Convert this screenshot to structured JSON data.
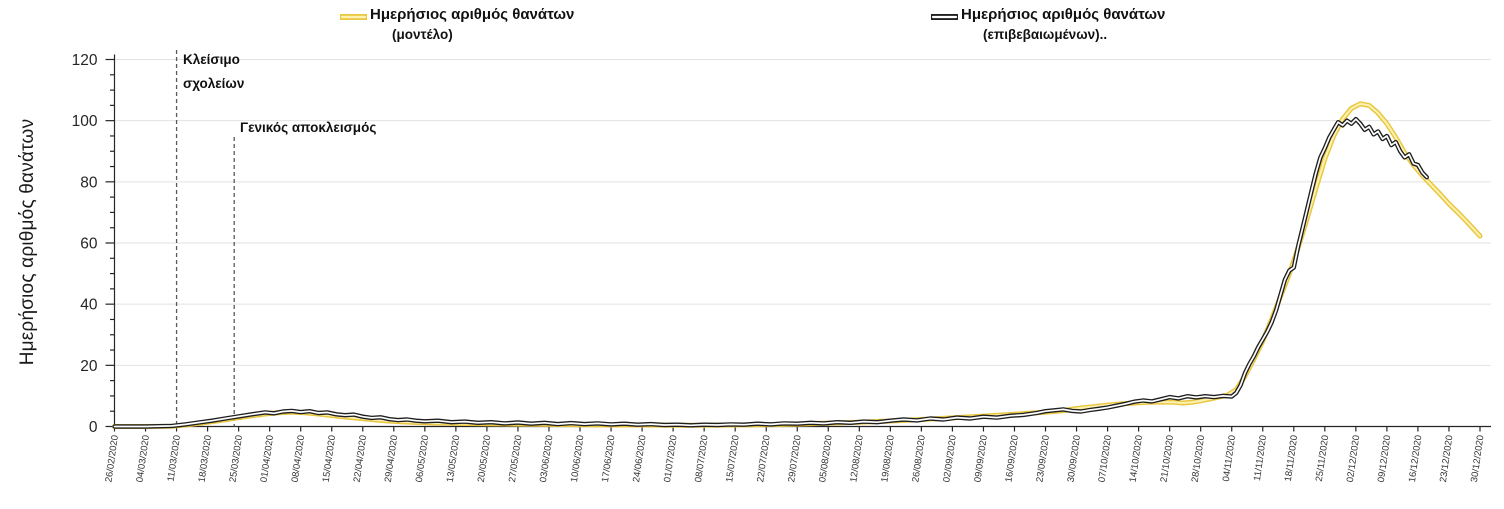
{
  "y_axis_title": "Ημερήσιος αριθμός θανάτων",
  "legend": [
    {
      "label": "Ημερήσιος αριθμός θανάτων",
      "sub": "(μοντέλο)"
    },
    {
      "label": "Ημερήσιος αριθμός θανάτων",
      "sub": "(επιβεβαιωμένων).."
    }
  ],
  "annotations": [
    {
      "line1": "Κλείσιμο",
      "line2": "σχολείων",
      "date": "11/03/2020",
      "day": 14
    },
    {
      "line1": "Γενικός αποκλεισμός",
      "line2": "",
      "date": "24/03/2020",
      "day": 27
    }
  ],
  "colors": {
    "model_outer": "#E9C63E",
    "model_inner": "#FCF1B0",
    "confirmed_outer": "#1F1F1F",
    "confirmed_inner": "#FFFFFF",
    "gridline": "#E2E2E2",
    "axis": "#262626",
    "tick_label": "#333333",
    "dashed_line": "#595959"
  },
  "chart_data": {
    "type": "line",
    "title": "",
    "xlabel": "",
    "ylabel": "Ημερήσιος αριθμός θανάτων",
    "ylim": [
      0,
      120
    ],
    "y_ticks": [
      0,
      20,
      40,
      60,
      80,
      100,
      120
    ],
    "y_minor_step": 5,
    "grid": "horizontal",
    "legend_position": "top",
    "x_start_date": "26/02/2020",
    "x_end_date": "30/12/2020",
    "x_tick_labels": [
      "26/02/2020",
      "04/03/2020",
      "11/03/2020",
      "18/03/2020",
      "25/03/2020",
      "01/04/2020",
      "08/04/2020",
      "15/04/2020",
      "22/04/2020",
      "29/04/2020",
      "06/05/2020",
      "13/05/2020",
      "20/05/2020",
      "27/05/2020",
      "03/06/2020",
      "10/06/2020",
      "17/06/2020",
      "24/06/2020",
      "01/07/2020",
      "08/07/2020",
      "15/07/2020",
      "22/07/2020",
      "29/07/2020",
      "05/08/2020",
      "12/08/2020",
      "19/08/2020",
      "26/08/2020",
      "02/09/2020",
      "09/09/2020",
      "16/09/2020",
      "23/09/2020",
      "30/09/2020",
      "07/10/2020",
      "14/10/2020",
      "21/10/2020",
      "28/10/2020",
      "04/11/2020",
      "11/11/2020",
      "18/11/2020",
      "25/11/2020",
      "02/12/2020",
      "09/12/2020",
      "16/12/2020",
      "23/12/2020",
      "30/12/2020"
    ],
    "x_unit": "days since 26/02/2020",
    "series": [
      {
        "name": "Ημερήσιος αριθμός θανάτων (μοντέλο)",
        "color": "#E9C63E",
        "points": [
          [
            0,
            0
          ],
          [
            7,
            0
          ],
          [
            13,
            0.1
          ],
          [
            16,
            0.5
          ],
          [
            19,
            1.0
          ],
          [
            22,
            1.6
          ],
          [
            25,
            2.2
          ],
          [
            28,
            2.9
          ],
          [
            31,
            3.5
          ],
          [
            34,
            4.1
          ],
          [
            37,
            4.5
          ],
          [
            40,
            4.7
          ],
          [
            43,
            4.5
          ],
          [
            46,
            4.1
          ],
          [
            49,
            3.6
          ],
          [
            52,
            3.1
          ],
          [
            55,
            2.7
          ],
          [
            58,
            2.3
          ],
          [
            61,
            1.9
          ],
          [
            64,
            1.6
          ],
          [
            67,
            1.4
          ],
          [
            70,
            1.2
          ],
          [
            77,
            1.0
          ],
          [
            84,
            0.9
          ],
          [
            91,
            0.8
          ],
          [
            98,
            0.7
          ],
          [
            105,
            0.6
          ],
          [
            112,
            0.5
          ],
          [
            119,
            0.5
          ],
          [
            126,
            0.4
          ],
          [
            133,
            0.4
          ],
          [
            140,
            0.5
          ],
          [
            147,
            0.6
          ],
          [
            154,
            0.8
          ],
          [
            161,
            1.1
          ],
          [
            168,
            1.4
          ],
          [
            175,
            1.8
          ],
          [
            182,
            2.3
          ],
          [
            189,
            2.8
          ],
          [
            196,
            3.4
          ],
          [
            203,
            4.0
          ],
          [
            210,
            4.7
          ],
          [
            214,
            5.2
          ],
          [
            217,
            5.9
          ],
          [
            221,
            6.5
          ],
          [
            224,
            7.0
          ],
          [
            227,
            7.4
          ],
          [
            230,
            7.7
          ],
          [
            233,
            7.9
          ],
          [
            236,
            8.0
          ],
          [
            239,
            7.9
          ],
          [
            241,
            7.7
          ],
          [
            243,
            7.9
          ],
          [
            245,
            8.4
          ],
          [
            247,
            9.0
          ],
          [
            249,
            9.6
          ],
          [
            251,
            10.2
          ],
          [
            253,
            12
          ],
          [
            255,
            16.5
          ],
          [
            257,
            22
          ],
          [
            259,
            28
          ],
          [
            261,
            35
          ],
          [
            263,
            42.5
          ],
          [
            265,
            50
          ],
          [
            267,
            58.5
          ],
          [
            269,
            68
          ],
          [
            271,
            78
          ],
          [
            273,
            87.5
          ],
          [
            275,
            95
          ],
          [
            277,
            100.5
          ],
          [
            279,
            104
          ],
          [
            281,
            105.5
          ],
          [
            283,
            105
          ],
          [
            285,
            102.5
          ],
          [
            287,
            99
          ],
          [
            289,
            94.5
          ],
          [
            291,
            89.5
          ],
          [
            293,
            85.5
          ],
          [
            295,
            82
          ],
          [
            297,
            79
          ],
          [
            299,
            76
          ],
          [
            301,
            72.8
          ],
          [
            303,
            70
          ],
          [
            305,
            67
          ],
          [
            308,
            62.3
          ]
        ]
      },
      {
        "name": "Ημερήσιος αριθμός θανάτων (επιβεβαιωμένων)",
        "color": "#1F1F1F",
        "points": [
          [
            0,
            0
          ],
          [
            7,
            0
          ],
          [
            13,
            0.2
          ],
          [
            16,
            0.7
          ],
          [
            19,
            1.3
          ],
          [
            22,
            1.9
          ],
          [
            25,
            2.6
          ],
          [
            28,
            3.3
          ],
          [
            31,
            4.0
          ],
          [
            34,
            4.6
          ],
          [
            36,
            4.3
          ],
          [
            38,
            4.9
          ],
          [
            40,
            5.1
          ],
          [
            42,
            4.7
          ],
          [
            44,
            5.0
          ],
          [
            46,
            4.4
          ],
          [
            48,
            4.6
          ],
          [
            50,
            4.0
          ],
          [
            52,
            3.7
          ],
          [
            54,
            3.9
          ],
          [
            56,
            3.2
          ],
          [
            58,
            2.8
          ],
          [
            60,
            3.0
          ],
          [
            62,
            2.4
          ],
          [
            64,
            2.1
          ],
          [
            66,
            2.3
          ],
          [
            68,
            1.9
          ],
          [
            70,
            1.7
          ],
          [
            73,
            1.9
          ],
          [
            76,
            1.4
          ],
          [
            79,
            1.6
          ],
          [
            82,
            1.2
          ],
          [
            85,
            1.4
          ],
          [
            88,
            1.0
          ],
          [
            91,
            1.3
          ],
          [
            94,
            0.9
          ],
          [
            97,
            1.2
          ],
          [
            100,
            0.8
          ],
          [
            103,
            1.1
          ],
          [
            106,
            0.8
          ],
          [
            109,
            1.0
          ],
          [
            112,
            0.7
          ],
          [
            115,
            0.9
          ],
          [
            118,
            0.6
          ],
          [
            121,
            0.8
          ],
          [
            124,
            0.5
          ],
          [
            127,
            0.6
          ],
          [
            130,
            0.4
          ],
          [
            133,
            0.6
          ],
          [
            136,
            0.5
          ],
          [
            139,
            0.7
          ],
          [
            142,
            0.6
          ],
          [
            145,
            0.9
          ],
          [
            148,
            0.7
          ],
          [
            151,
            1.0
          ],
          [
            154,
            0.9
          ],
          [
            157,
            1.2
          ],
          [
            160,
            1.0
          ],
          [
            163,
            1.4
          ],
          [
            166,
            1.2
          ],
          [
            169,
            1.6
          ],
          [
            172,
            1.4
          ],
          [
            175,
            1.9
          ],
          [
            178,
            2.3
          ],
          [
            181,
            2.0
          ],
          [
            184,
            2.6
          ],
          [
            187,
            2.3
          ],
          [
            190,
            2.9
          ],
          [
            193,
            2.6
          ],
          [
            196,
            3.2
          ],
          [
            199,
            2.9
          ],
          [
            202,
            3.5
          ],
          [
            205,
            3.8
          ],
          [
            208,
            4.4
          ],
          [
            210,
            5.0
          ],
          [
            212,
            5.3
          ],
          [
            214,
            5.6
          ],
          [
            216,
            5.1
          ],
          [
            218,
            4.9
          ],
          [
            220,
            5.4
          ],
          [
            222,
            5.8
          ],
          [
            224,
            6.2
          ],
          [
            226,
            6.8
          ],
          [
            228,
            7.4
          ],
          [
            230,
            8.1
          ],
          [
            232,
            8.5
          ],
          [
            234,
            8.2
          ],
          [
            236,
            8.9
          ],
          [
            238,
            9.6
          ],
          [
            240,
            9.2
          ],
          [
            242,
            9.9
          ],
          [
            244,
            9.5
          ],
          [
            246,
            9.9
          ],
          [
            248,
            9.6
          ],
          [
            250,
            10.0
          ],
          [
            252,
            9.8
          ],
          [
            253,
            11
          ],
          [
            254,
            13.5
          ],
          [
            255,
            17.5
          ],
          [
            256,
            20.5
          ],
          [
            257,
            23
          ],
          [
            258,
            26
          ],
          [
            259,
            28.5
          ],
          [
            260,
            31
          ],
          [
            261,
            34
          ],
          [
            262,
            38
          ],
          [
            263,
            43
          ],
          [
            264,
            48
          ],
          [
            265,
            51
          ],
          [
            266,
            52
          ],
          [
            267,
            59
          ],
          [
            268,
            65
          ],
          [
            269,
            71
          ],
          [
            270,
            77
          ],
          [
            271,
            83
          ],
          [
            272,
            88
          ],
          [
            273,
            91
          ],
          [
            274,
            94.5
          ],
          [
            275,
            97
          ],
          [
            276,
            99.5
          ],
          [
            277,
            98.5
          ],
          [
            278,
            100
          ],
          [
            279,
            99
          ],
          [
            280,
            100.5
          ],
          [
            281,
            99
          ],
          [
            282,
            97
          ],
          [
            283,
            98
          ],
          [
            284,
            95.5
          ],
          [
            285,
            96.5
          ],
          [
            286,
            94
          ],
          [
            287,
            95
          ],
          [
            288,
            92
          ],
          [
            289,
            93
          ],
          [
            290,
            90
          ],
          [
            291,
            88
          ],
          [
            292,
            89
          ],
          [
            293,
            86
          ],
          [
            294,
            85.5
          ],
          [
            295,
            83
          ],
          [
            296,
            81.5
          ]
        ]
      }
    ]
  }
}
